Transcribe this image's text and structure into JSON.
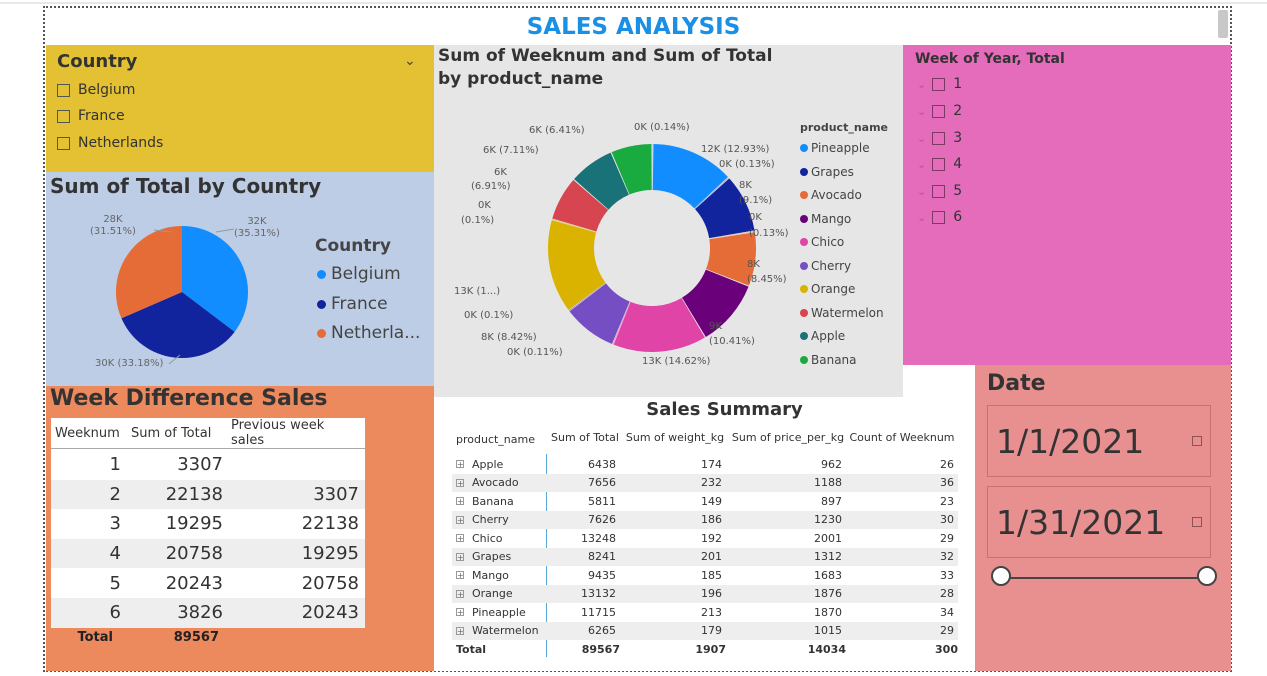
{
  "dashboard": {
    "title": "SALES ANALYSIS"
  },
  "country_slicer": {
    "title": "Country",
    "items": [
      "Belgium",
      "France",
      "Netherlands"
    ]
  },
  "pie_chart": {
    "title": "Sum of Total by Country",
    "legend_title": "Country",
    "legend": [
      "Belgium",
      "France",
      "Netherla..."
    ],
    "labels": [
      {
        "value": "32K",
        "pct": "(35.31%)"
      },
      {
        "value": "30K (33.18%)",
        "pct": ""
      },
      {
        "value": "28K",
        "pct": "(31.51%)"
      }
    ],
    "colors": [
      "#118dff",
      "#12239e",
      "#e66c37"
    ]
  },
  "donut_chart": {
    "title": "Sum of Weeknum and Sum of Total by product_name",
    "legend_title": "product_name",
    "legend": [
      "Pineapple",
      "Grapes",
      "Avocado",
      "Mango",
      "Chico",
      "Cherry",
      "Orange",
      "Watermelon",
      "Apple",
      "Banana"
    ],
    "legend_colors": [
      "#118dff",
      "#12239e",
      "#e66c37",
      "#6b007b",
      "#e044a7",
      "#744ec2",
      "#d9b300",
      "#d64550",
      "#197278",
      "#1aab40"
    ],
    "labels": [
      "0K (0.14%)",
      "12K (12.93%)",
      "0K (0.13%)",
      "8K",
      "(9.1%)",
      "0K",
      "(0.13%)",
      "8K",
      "(8.45%)",
      "9K",
      "(10.41%)",
      "13K (14.62%)",
      "0K (0.11%)",
      "8K (8.42%)",
      "0K (0.1%)",
      "13K (1...)",
      "0K",
      "(0.1%)",
      "6K",
      "(6.91%)",
      "6K (7.11%)",
      "6K (6.41%)"
    ]
  },
  "chart_data": [
    {
      "type": "pie",
      "title": "Sum of Total by Country",
      "categories": [
        "Belgium",
        "France",
        "Netherlands"
      ],
      "values": [
        35.31,
        33.18,
        31.51
      ],
      "value_labels": [
        "32K",
        "30K",
        "28K"
      ],
      "legend_title": "Country",
      "legend": "right"
    },
    {
      "type": "pie",
      "title": "Sum of Weeknum and Sum of Total by product_name",
      "legend_title": "product_name",
      "legend": "right",
      "segments": [
        {
          "label": "0K (0.14%)",
          "value": 0.14,
          "color": "#118dff"
        },
        {
          "label": "12K (12.93%)",
          "value": 12.93,
          "color": "#118dff"
        },
        {
          "label": "0K (0.13%)",
          "value": 0.13,
          "color": "#12239e"
        },
        {
          "label": "8K (9.1%)",
          "value": 9.1,
          "color": "#12239e"
        },
        {
          "label": "0K (0.13%)",
          "value": 0.13,
          "color": "#e66c37"
        },
        {
          "label": "8K (8.45%)",
          "value": 8.45,
          "color": "#e66c37"
        },
        {
          "label": "9K (10.41%)",
          "value": 10.41,
          "color": "#6b007b"
        },
        {
          "label": "13K (14.62%)",
          "value": 14.62,
          "color": "#e044a7"
        },
        {
          "label": "0K (0.11%)",
          "value": 0.11,
          "color": "#e044a7"
        },
        {
          "label": "8K (8.42%)",
          "value": 8.42,
          "color": "#744ec2"
        },
        {
          "label": "0K (0.1%)",
          "value": 0.1,
          "color": "#744ec2"
        },
        {
          "label": "13K (1...)",
          "value": 14.6,
          "color": "#d9b300"
        },
        {
          "label": "0K (0.1%)",
          "value": 0.1,
          "color": "#d9b300"
        },
        {
          "label": "6K (6.91%)",
          "value": 6.91,
          "color": "#d64550"
        },
        {
          "label": "6K (7.11%)",
          "value": 7.11,
          "color": "#197278"
        },
        {
          "label": "6K (6.41%)",
          "value": 6.41,
          "color": "#1aab40"
        }
      ]
    }
  ],
  "week_slicer": {
    "title": "Week of Year, Total",
    "items": [
      "1",
      "2",
      "3",
      "4",
      "5",
      "6"
    ]
  },
  "date_slicer": {
    "title": "Date",
    "start": "1/1/2021",
    "end": "1/31/2021",
    "range_fraction": [
      0,
      1
    ]
  },
  "week_difference": {
    "title": "Week Difference Sales",
    "headers": [
      "Weeknum",
      "Sum of Total",
      "Previous week sales"
    ],
    "rows": [
      [
        "1",
        "3307",
        ""
      ],
      [
        "2",
        "22138",
        "3307"
      ],
      [
        "3",
        "19295",
        "22138"
      ],
      [
        "4",
        "20758",
        "19295"
      ],
      [
        "5",
        "20243",
        "20758"
      ],
      [
        "6",
        "3826",
        "20243"
      ]
    ],
    "total_label": "Total",
    "total_value": "89567"
  },
  "sales_summary": {
    "title": "Sales Summary",
    "headers": [
      "product_name",
      "Sum of Total",
      "Sum of weight_kg",
      "Sum of price_per_kg",
      "Count of Weeknum"
    ],
    "rows": [
      [
        "Apple",
        "6438",
        "174",
        "962",
        "26"
      ],
      [
        "Avocado",
        "7656",
        "232",
        "1188",
        "36"
      ],
      [
        "Banana",
        "5811",
        "149",
        "897",
        "23"
      ],
      [
        "Cherry",
        "7626",
        "186",
        "1230",
        "30"
      ],
      [
        "Chico",
        "13248",
        "192",
        "2001",
        "29"
      ],
      [
        "Grapes",
        "8241",
        "201",
        "1312",
        "32"
      ],
      [
        "Mango",
        "9435",
        "185",
        "1683",
        "33"
      ],
      [
        "Orange",
        "13132",
        "196",
        "1876",
        "28"
      ],
      [
        "Pineapple",
        "11715",
        "213",
        "1870",
        "34"
      ],
      [
        "Watermelon",
        "6265",
        "179",
        "1015",
        "29"
      ]
    ],
    "total": [
      "Total",
      "89567",
      "1907",
      "14034",
      "300"
    ]
  }
}
